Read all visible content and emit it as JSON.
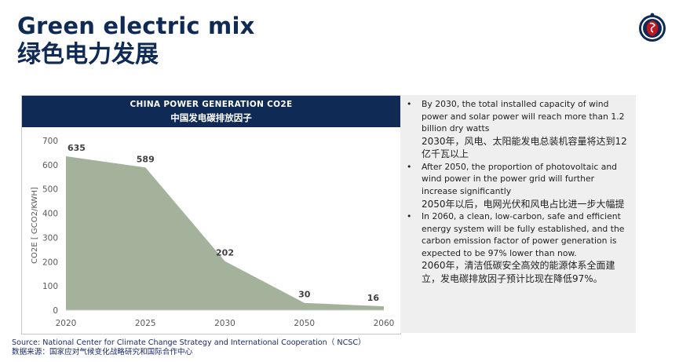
{
  "title_en": "Green electric mix",
  "title_zh": "绿色电力发展",
  "chart_header": {
    "title_en": "CHINA POWER GENERATION CO2E",
    "title_zh": "中国发电碳排放因子"
  },
  "chart_data": {
    "type": "area",
    "title": "CHINA POWER GENERATION CO2E",
    "subtitle": "中国发电碳排放因子",
    "x": [
      "2020",
      "2025",
      "2030",
      "2050",
      "2060"
    ],
    "values": [
      635,
      589,
      202,
      30,
      16
    ],
    "data_labels": [
      "635",
      "589",
      "202",
      "30",
      "16"
    ],
    "ylabel": "CO2E [ GCO2/KWH]",
    "xlabel": "",
    "ylim": [
      0,
      700
    ],
    "yticks": [
      "0",
      "100",
      "200",
      "300",
      "400",
      "500",
      "600",
      "700"
    ],
    "grid": false,
    "legend": "none",
    "fill_color": "#a4b29c"
  },
  "notes": [
    {
      "en": "By 2030, the total installed capacity of wind power and solar power will reach more than 1.2 billion dry watts",
      "zh": "2030年，风电、太阳能发电总装机容量将达到12亿千瓦以上"
    },
    {
      "en": "After 2050, the proportion of photovoltaic and wind power in the power grid will further increase significantly",
      "zh": "2050年以后，电网光伏和风电占比进一步大幅提"
    },
    {
      "en": "In 2060, a clean, low-carbon, safe and efficient energy system will be fully established, and the carbon emission factor of power generation is expected to be 97% lower than now.",
      "zh": "2060年，清洁低碳安全高效的能源体系全面建立，发电碳排放因子预计比现在降低97%。"
    }
  ],
  "bullet_glyph": "•",
  "source_en": "Source: National Center for Climate Change Strategy and International Cooperation（ NCSC）",
  "source_zh": "数据来源：国家应对气候变化战略研究和国际合作中心",
  "colors": {
    "navy": "#0e2a55",
    "area": "#a4b29c",
    "notes_bg": "#efefef",
    "logo_red": "#c0161f"
  },
  "logo_icon": "griffin-crest-icon"
}
